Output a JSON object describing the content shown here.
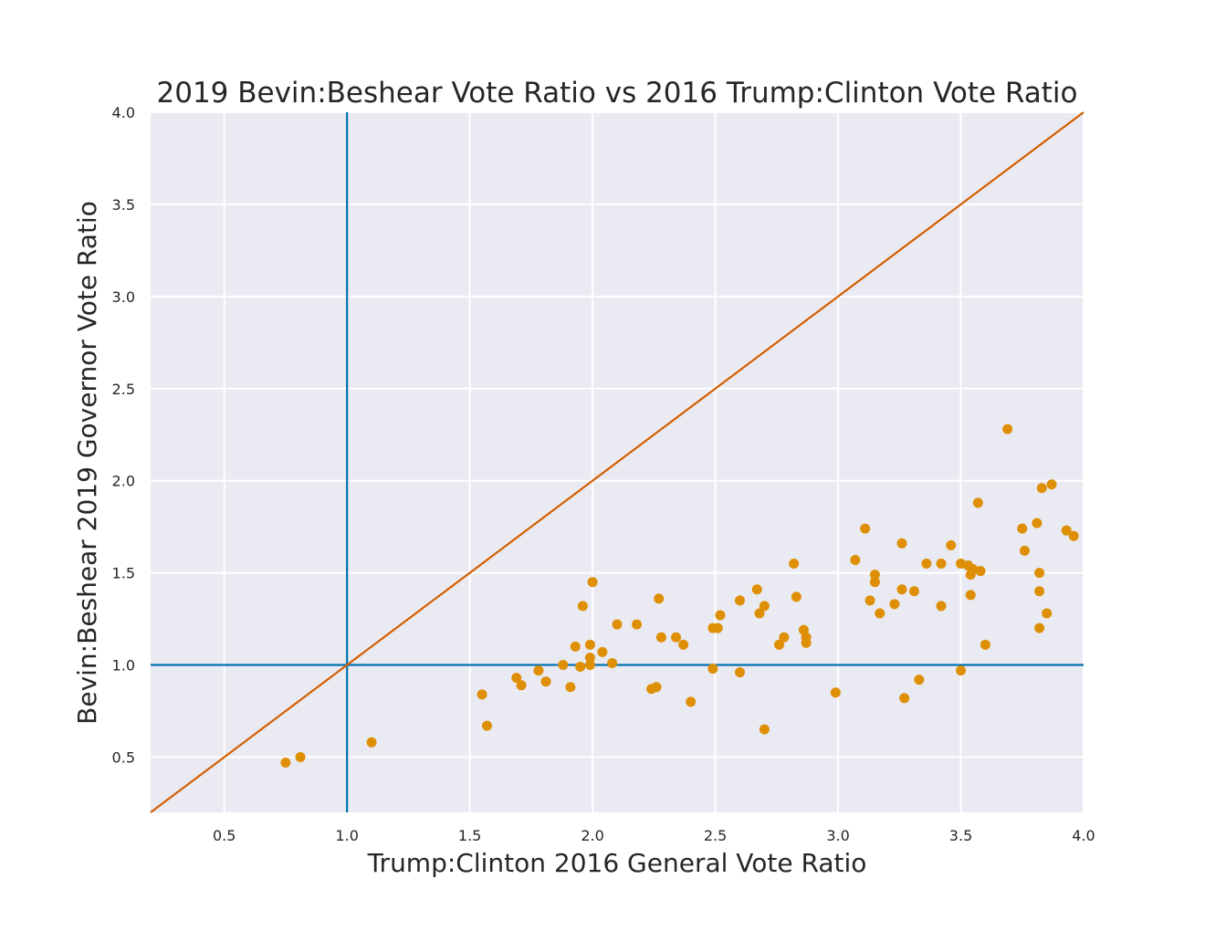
{
  "chart_data": {
    "type": "scatter",
    "title": "2019 Bevin:Beshear Vote Ratio vs 2016 Trump:Clinton Vote Ratio",
    "xlabel": "Trump:Clinton 2016 General Vote Ratio",
    "ylabel": "Bevin:Beshear 2019 Governor Vote Ratio",
    "xlim": [
      0.2,
      4.0
    ],
    "ylim": [
      0.2,
      4.0
    ],
    "xticks": [
      "0.5",
      "1.0",
      "1.5",
      "2.0",
      "2.5",
      "3.0",
      "3.5",
      "4.0"
    ],
    "yticks": [
      "0.5",
      "1.0",
      "1.5",
      "2.0",
      "2.5",
      "3.0",
      "3.5",
      "4.0"
    ],
    "grid": true,
    "colors": {
      "background": "#eaeaf2",
      "grid": "#ffffff",
      "points": "#de8f05",
      "reference_lines": "#0173b2",
      "diagonal": "#d55e00"
    },
    "reference_lines": {
      "vertical_x": 1.0,
      "horizontal_y": 1.0,
      "diagonal": "y = x"
    },
    "points": [
      {
        "x": 0.75,
        "y": 0.47
      },
      {
        "x": 0.81,
        "y": 0.5
      },
      {
        "x": 1.1,
        "y": 0.58
      },
      {
        "x": 1.55,
        "y": 0.84
      },
      {
        "x": 1.57,
        "y": 0.67
      },
      {
        "x": 1.69,
        "y": 0.93
      },
      {
        "x": 1.71,
        "y": 0.89
      },
      {
        "x": 1.78,
        "y": 0.97
      },
      {
        "x": 1.81,
        "y": 0.91
      },
      {
        "x": 1.88,
        "y": 1.0
      },
      {
        "x": 1.91,
        "y": 0.88
      },
      {
        "x": 1.93,
        "y": 1.1
      },
      {
        "x": 1.95,
        "y": 0.99
      },
      {
        "x": 1.96,
        "y": 1.32
      },
      {
        "x": 1.99,
        "y": 1.0
      },
      {
        "x": 1.99,
        "y": 1.04
      },
      {
        "x": 1.99,
        "y": 1.11
      },
      {
        "x": 2.0,
        "y": 1.45
      },
      {
        "x": 2.04,
        "y": 1.07
      },
      {
        "x": 2.08,
        "y": 1.01
      },
      {
        "x": 2.1,
        "y": 1.22
      },
      {
        "x": 2.18,
        "y": 1.22
      },
      {
        "x": 2.24,
        "y": 0.87
      },
      {
        "x": 2.26,
        "y": 0.88
      },
      {
        "x": 2.27,
        "y": 1.36
      },
      {
        "x": 2.28,
        "y": 1.15
      },
      {
        "x": 2.34,
        "y": 1.15
      },
      {
        "x": 2.37,
        "y": 1.11
      },
      {
        "x": 2.4,
        "y": 0.8
      },
      {
        "x": 2.49,
        "y": 0.98
      },
      {
        "x": 2.49,
        "y": 1.2
      },
      {
        "x": 2.51,
        "y": 1.2
      },
      {
        "x": 2.52,
        "y": 1.27
      },
      {
        "x": 2.6,
        "y": 0.96
      },
      {
        "x": 2.6,
        "y": 1.35
      },
      {
        "x": 2.67,
        "y": 1.41
      },
      {
        "x": 2.68,
        "y": 1.28
      },
      {
        "x": 2.7,
        "y": 1.32
      },
      {
        "x": 2.7,
        "y": 0.65
      },
      {
        "x": 2.76,
        "y": 1.11
      },
      {
        "x": 2.78,
        "y": 1.15
      },
      {
        "x": 2.82,
        "y": 1.55
      },
      {
        "x": 2.83,
        "y": 1.37
      },
      {
        "x": 2.86,
        "y": 1.19
      },
      {
        "x": 2.87,
        "y": 1.15
      },
      {
        "x": 2.87,
        "y": 1.12
      },
      {
        "x": 2.99,
        "y": 0.85
      },
      {
        "x": 3.07,
        "y": 1.57
      },
      {
        "x": 3.11,
        "y": 1.74
      },
      {
        "x": 3.13,
        "y": 1.35
      },
      {
        "x": 3.15,
        "y": 1.49
      },
      {
        "x": 3.15,
        "y": 1.45
      },
      {
        "x": 3.17,
        "y": 1.28
      },
      {
        "x": 3.23,
        "y": 1.33
      },
      {
        "x": 3.26,
        "y": 1.66
      },
      {
        "x": 3.26,
        "y": 1.41
      },
      {
        "x": 3.27,
        "y": 0.82
      },
      {
        "x": 3.31,
        "y": 1.4
      },
      {
        "x": 3.33,
        "y": 0.92
      },
      {
        "x": 3.36,
        "y": 1.55
      },
      {
        "x": 3.42,
        "y": 1.55
      },
      {
        "x": 3.42,
        "y": 1.32
      },
      {
        "x": 3.46,
        "y": 1.65
      },
      {
        "x": 3.5,
        "y": 0.97
      },
      {
        "x": 3.5,
        "y": 1.55
      },
      {
        "x": 3.53,
        "y": 1.54
      },
      {
        "x": 3.54,
        "y": 1.49
      },
      {
        "x": 3.54,
        "y": 1.38
      },
      {
        "x": 3.55,
        "y": 1.52
      },
      {
        "x": 3.57,
        "y": 1.88
      },
      {
        "x": 3.58,
        "y": 1.51
      },
      {
        "x": 3.6,
        "y": 1.11
      },
      {
        "x": 3.69,
        "y": 2.28
      },
      {
        "x": 3.75,
        "y": 1.74
      },
      {
        "x": 3.76,
        "y": 1.62
      },
      {
        "x": 3.81,
        "y": 1.77
      },
      {
        "x": 3.82,
        "y": 1.5
      },
      {
        "x": 3.82,
        "y": 1.4
      },
      {
        "x": 3.82,
        "y": 1.2
      },
      {
        "x": 3.83,
        "y": 1.96
      },
      {
        "x": 3.85,
        "y": 1.28
      },
      {
        "x": 3.87,
        "y": 1.98
      },
      {
        "x": 3.93,
        "y": 1.73
      },
      {
        "x": 3.96,
        "y": 1.7
      }
    ]
  }
}
